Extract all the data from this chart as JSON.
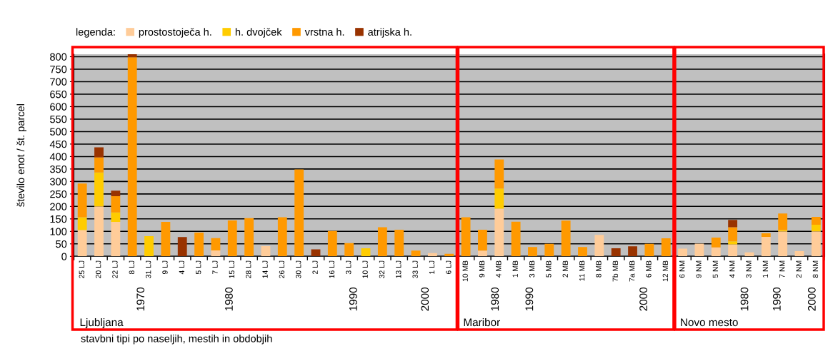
{
  "chart_data": [
    {
      "type": "bar",
      "title": "Ljubljana",
      "xlabel": "stavbni tipi po naseljih, mestih in obdobjih",
      "ylabel": "število enot / št. parcel",
      "legend_title": "legenda:",
      "legend": "top left",
      "stacked": true,
      "grid": "y",
      "ylim": [
        0,
        810
      ],
      "yticks": [
        0,
        50,
        100,
        150,
        200,
        250,
        300,
        350,
        400,
        450,
        500,
        550,
        600,
        650,
        700,
        750,
        800
      ],
      "categories": [
        "25 LJ",
        "20 LJ",
        "22 LJ",
        "8 LJ",
        "31 LJ",
        "9 LJ",
        "4 LJ",
        "5 LJ",
        "7 LJ",
        "15 LJ",
        "28 LJ",
        "14 LJ",
        "26 LJ",
        "30 LJ",
        "2 LJ",
        "16 LJ",
        "3 LJ",
        "10 LJ",
        "32 LJ",
        "13 LJ",
        "33 LJ",
        "1 LJ",
        "6 LJ"
      ],
      "series": [
        {
          "name": "prostostoječa h.",
          "color": "#ffcc99",
          "values": [
            105,
            200,
            138,
            null,
            null,
            null,
            null,
            null,
            24,
            null,
            null,
            41,
            null,
            null,
            null,
            null,
            null,
            null,
            null,
            null,
            null,
            13,
            null
          ]
        },
        {
          "name": "h. dvojček",
          "color": "#ffcc00",
          "values": [
            52,
            136,
            38,
            null,
            81,
            null,
            null,
            null,
            null,
            null,
            null,
            null,
            null,
            null,
            null,
            null,
            null,
            32,
            null,
            null,
            null,
            null,
            null
          ]
        },
        {
          "name": "vrstna h.",
          "color": "#ff9900",
          "values": [
            135,
            61,
            65,
            798,
            null,
            138,
            null,
            95,
            49,
            144,
            153,
            null,
            157,
            348,
            null,
            102,
            53,
            null,
            117,
            107,
            23,
            null,
            10
          ]
        },
        {
          "name": "atrijska h.",
          "color": "#993300",
          "values": [
            null,
            40,
            22,
            12,
            null,
            null,
            77,
            null,
            null,
            null,
            null,
            null,
            null,
            null,
            28,
            null,
            null,
            null,
            null,
            null,
            null,
            null,
            null
          ]
        }
      ],
      "annotations": [
        "1970",
        "1980",
        "1990",
        "2000"
      ]
    },
    {
      "type": "bar",
      "title": "Maribor",
      "stacked": true,
      "grid": "y",
      "tick_labels": "x",
      "ylim": [
        0,
        810
      ],
      "yticks": [
        0,
        50,
        100,
        150,
        200,
        250,
        300,
        350,
        400,
        450,
        500,
        550,
        600,
        650,
        700,
        750,
        800
      ],
      "categories": [
        "10 MB",
        "9 MB",
        "4 MB",
        "1 MB",
        "3 MB",
        "5 MB",
        "2 MB",
        "11 MB",
        "8 MB",
        "7b MB",
        "7a MB",
        "6 MB",
        "12 MB"
      ],
      "series": [
        {
          "color": "#ffcc99",
          "values": [
            null,
            23,
            191,
            null,
            null,
            null,
            null,
            null,
            86,
            null,
            null,
            null,
            null
          ]
        },
        {
          "color": "#ffcc00",
          "values": [
            null,
            null,
            81,
            null,
            null,
            null,
            null,
            null,
            null,
            null,
            null,
            null,
            null
          ]
        },
        {
          "color": "#ff9900",
          "values": [
            157,
            84,
            116,
            139,
            37,
            50,
            143,
            37,
            null,
            null,
            null,
            50,
            72
          ]
        },
        {
          "color": "#993300",
          "values": [
            null,
            null,
            null,
            null,
            null,
            null,
            null,
            null,
            null,
            32,
            40,
            null,
            null
          ]
        }
      ],
      "annotations": [
        "1980",
        "1990",
        "2000"
      ]
    },
    {
      "type": "bar",
      "title": "Novo mesto",
      "stacked": true,
      "grid": "y",
      "tick_labels": "x",
      "ylim": [
        0,
        810
      ],
      "yticks": [
        0,
        50,
        100,
        150,
        200,
        250,
        300,
        350,
        400,
        450,
        500,
        550,
        600,
        650,
        700,
        750,
        800
      ],
      "categories": [
        "6 NM",
        "9 NM",
        "5 NM",
        "4 NM",
        "3 NM",
        "1 NM",
        "7 NM",
        "2 NM",
        "8 NM"
      ],
      "series": [
        {
          "color": "#ffcc99",
          "values": [
            31,
            51,
            36,
            48,
            16,
            78,
            100,
            21,
            100
          ]
        },
        {
          "color": "#ffcc00",
          "values": [
            null,
            null,
            null,
            12,
            null,
            null,
            5,
            null,
            27
          ]
        },
        {
          "color": "#ff9900",
          "values": [
            null,
            null,
            39,
            57,
            null,
            14,
            67,
            null,
            31
          ]
        },
        {
          "color": "#993300",
          "values": [
            null,
            null,
            null,
            29,
            null,
            null,
            null,
            null,
            null
          ]
        }
      ],
      "annotations": [
        "1980",
        "1990",
        "2000"
      ]
    }
  ]
}
